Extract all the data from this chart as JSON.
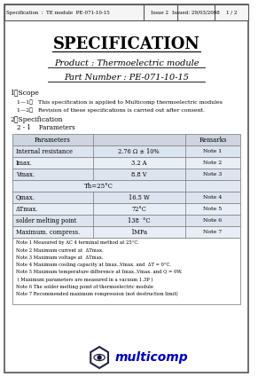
{
  "header_spec": "Specification  :  TE module  PE-071-10-15",
  "header_issue": "Issue 2",
  "header_issued": "Issued: 29/03/2008",
  "header_page": "1 / 2",
  "title": "SPECIFICATION",
  "product_line": "Product : Thermoelectric module",
  "part_line": "Part Number : PE-071-10-15",
  "scope_title": "1．Scope",
  "scope_11": "1—1．   This specification is applied to Multicomp thermoelectric modules",
  "scope_12": "1—2．   Revision of these specifications is carried out after consent.",
  "spec_title": "2．Specification",
  "spec_21": "2 - 1    Parameters",
  "table_col1": "Parameters",
  "table_col2": "Remarks",
  "table_rows": [
    [
      "Internal resistance",
      "2.76 Ω ± 10%",
      "",
      "Note 1"
    ],
    [
      "Imax.",
      "3.2 A",
      "",
      "Note 2"
    ],
    [
      "Vmax.",
      "8.8 V",
      "",
      "Note 3"
    ],
    [
      "Th=25°C",
      "",
      "",
      ""
    ],
    [
      "Qmax.",
      "16.5 W",
      "",
      "Note 4"
    ],
    [
      "ΔTmax.",
      "72°C",
      "",
      "Note 5"
    ],
    [
      "solder melting point",
      "138  °C",
      "",
      "Note 6"
    ],
    [
      "Maximum. compress.",
      "1MPa",
      "",
      "Note 7"
    ]
  ],
  "notes": [
    "Note 1 Measured by AC 4 terminal method at 25°C.",
    "Note 2 Maximum current at  ΔTmax.",
    "Note 3 Maximum voltage at  ΔTmax.",
    "Note 4 Maximum cooling capacity at Imax.,Vmax. and  ΔT = 0°C.",
    "Note 5 Maximum temperature difference at Imax.,Vmax. and Q = 0W.",
    " ( Maximum parameters are measured in a vacuum 1.3P )",
    "Note 6 The solder melting point of thermoelectric module",
    "Note 7 Recommended maximum rompression (not destruction limit)"
  ],
  "bg_color": "#ffffff",
  "table_header_bg": "#cdd5e0",
  "border_color": "#888888",
  "row_colors": [
    "#dce4ef",
    "#e8eef5",
    "#dce4ef",
    "#e0e8f2",
    "#dce4ef",
    "#e8eef5",
    "#dce4ef",
    "#e8eef5"
  ]
}
